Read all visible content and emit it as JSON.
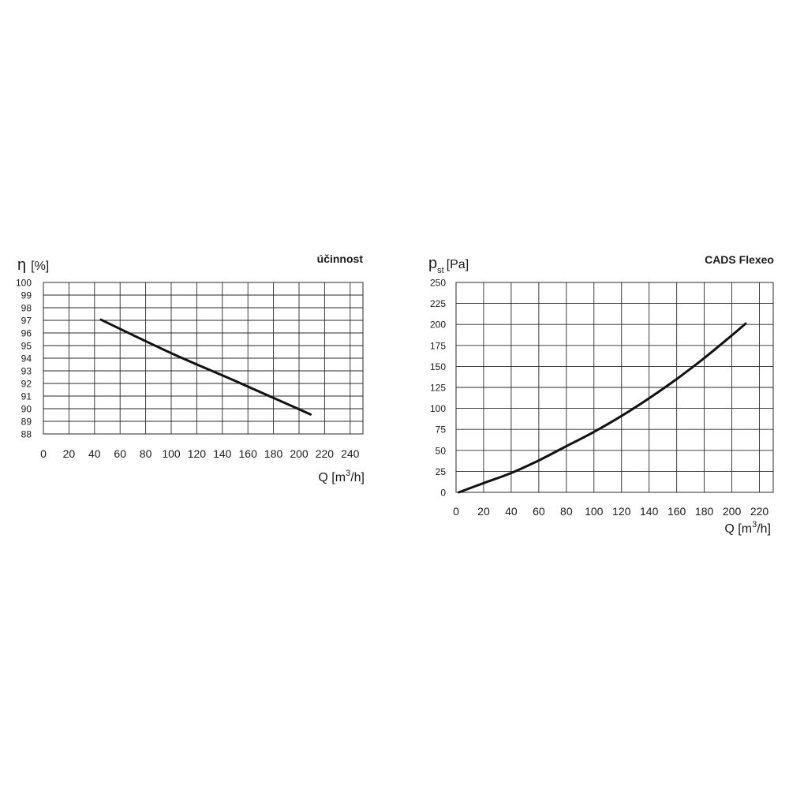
{
  "chart_data": [
    {
      "type": "line",
      "title": "účinnost",
      "ylabel": {
        "symbol": "η",
        "unit": "[%]"
      },
      "xlabel": {
        "prefix": "Q [m",
        "sup": "3",
        "suffix": "/h]"
      },
      "xlim": [
        0,
        250
      ],
      "ylim": [
        88,
        100
      ],
      "xticks": [
        0,
        20,
        40,
        60,
        80,
        100,
        120,
        140,
        160,
        180,
        200,
        220,
        240
      ],
      "yticks": [
        88,
        89,
        90,
        91,
        92,
        93,
        94,
        95,
        96,
        97,
        98,
        99,
        100
      ],
      "grid": true,
      "series": [
        {
          "x": [
            45,
            100,
            150,
            209
          ],
          "y": [
            97.05,
            94.4,
            92.2,
            89.55
          ]
        }
      ]
    },
    {
      "type": "line",
      "title": "CADS Flexeo",
      "ylabel": {
        "symbol": "p",
        "sub": "st",
        "unit": "[Pa]"
      },
      "xlabel": {
        "prefix": "Q [m",
        "sup": "3",
        "suffix": "/h]"
      },
      "xlim": [
        0,
        230
      ],
      "ylim": [
        0,
        250
      ],
      "xticks": [
        0,
        20,
        40,
        60,
        80,
        100,
        120,
        140,
        160,
        180,
        200,
        220
      ],
      "yticks": [
        0,
        25,
        50,
        75,
        100,
        125,
        150,
        175,
        200,
        225,
        250
      ],
      "grid": true,
      "series": [
        {
          "x": [
            2,
            20,
            40,
            60,
            80,
            100,
            120,
            140,
            160,
            180,
            200,
            210
          ],
          "y": [
            0,
            11,
            23,
            38,
            55,
            72,
            91,
            112,
            135,
            160,
            187,
            201
          ]
        }
      ]
    }
  ]
}
